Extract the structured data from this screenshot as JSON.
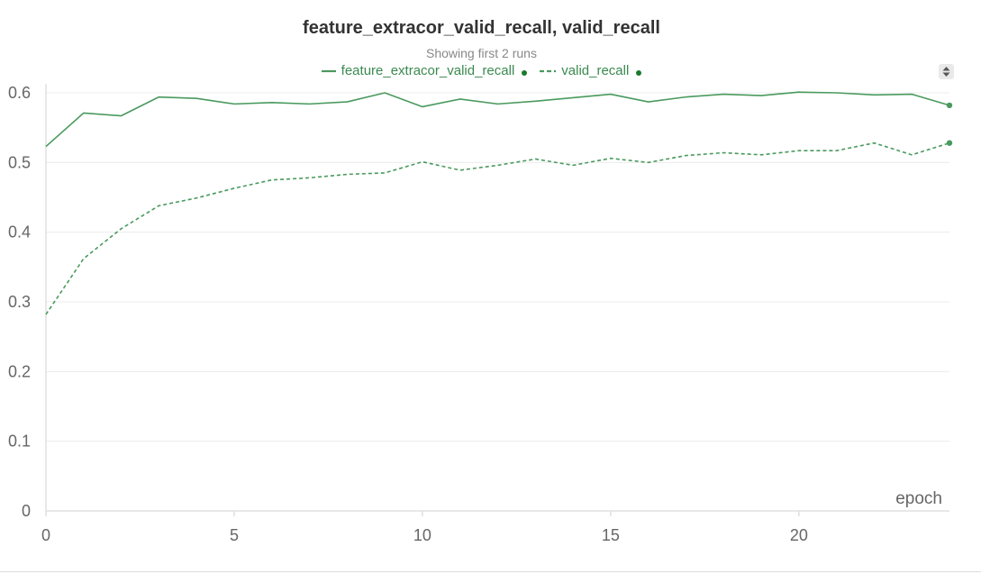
{
  "chart": {
    "title": "feature_extracor_valid_recall, valid_recall",
    "subtitle": "Showing first 2 runs",
    "colors": {
      "line": "#4a9a5e",
      "dot": "#1a7a2a",
      "grid": "#ececec",
      "axis": "#e0e0e0",
      "tick_text": "#666666"
    }
  },
  "legend": {
    "items": [
      {
        "label": "feature_extracor_valid_recall",
        "style": "solid"
      },
      {
        "label": "valid_recall",
        "style": "dashed"
      }
    ],
    "toggle_icon": "sort-arrows-icon"
  },
  "chart_data": {
    "type": "line",
    "title": "feature_extracor_valid_recall, valid_recall",
    "subtitle": "Showing first 2 runs",
    "xlabel": "epoch",
    "ylabel": "",
    "xlim": [
      0,
      24
    ],
    "ylim": [
      0,
      0.6
    ],
    "x_ticks": [
      0,
      5,
      10,
      15,
      20
    ],
    "y_ticks": [
      0,
      0.1,
      0.2,
      0.3,
      0.4,
      0.5,
      0.6
    ],
    "x_tick_labels": [
      "0",
      "5",
      "10",
      "15",
      "20"
    ],
    "y_tick_labels": [
      "0",
      "0.1",
      "0.2",
      "0.3",
      "0.4",
      "0.5",
      "0.6"
    ],
    "grid": true,
    "legend_position": "top-center",
    "x": [
      0,
      1,
      2,
      3,
      4,
      5,
      6,
      7,
      8,
      9,
      10,
      11,
      12,
      13,
      14,
      15,
      16,
      17,
      18,
      19,
      20,
      21,
      22,
      23,
      24
    ],
    "series": [
      {
        "name": "feature_extracor_valid_recall",
        "style": "solid",
        "color": "#4a9a5e",
        "values": [
          0.523,
          0.571,
          0.567,
          0.594,
          0.592,
          0.584,
          0.586,
          0.584,
          0.587,
          0.6,
          0.58,
          0.591,
          0.584,
          0.588,
          0.593,
          0.598,
          0.587,
          0.594,
          0.598,
          0.596,
          0.601,
          0.6,
          0.597,
          0.598,
          0.582
        ]
      },
      {
        "name": "valid_recall",
        "style": "dashed",
        "color": "#4a9a5e",
        "values": [
          0.282,
          0.362,
          0.405,
          0.438,
          0.449,
          0.463,
          0.475,
          0.478,
          0.483,
          0.485,
          0.501,
          0.489,
          0.496,
          0.505,
          0.496,
          0.506,
          0.5,
          0.51,
          0.514,
          0.511,
          0.517,
          0.517,
          0.528,
          0.511,
          0.528
        ]
      }
    ]
  }
}
